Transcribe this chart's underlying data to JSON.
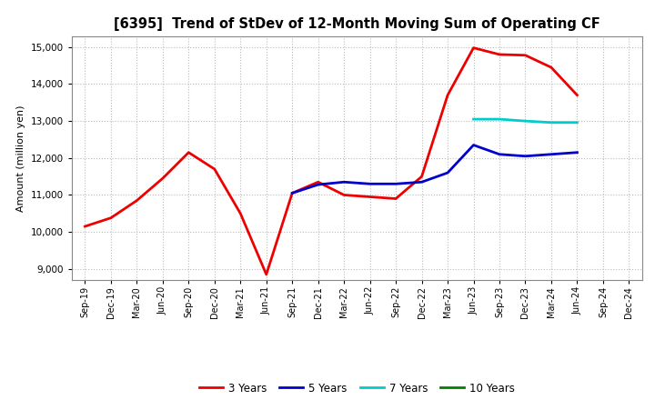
{
  "title": "[6395]  Trend of StDev of 12-Month Moving Sum of Operating CF",
  "ylabel": "Amount (million yen)",
  "ylim": [
    8700,
    15300
  ],
  "yticks": [
    9000,
    10000,
    11000,
    12000,
    13000,
    14000,
    15000
  ],
  "background_color": "#ffffff",
  "plot_bg_color": "#ffffff",
  "grid_color": "#bbbbbb",
  "x_labels": [
    "Sep-19",
    "Dec-19",
    "Mar-20",
    "Jun-20",
    "Sep-20",
    "Dec-20",
    "Mar-21",
    "Jun-21",
    "Sep-21",
    "Dec-21",
    "Mar-22",
    "Jun-22",
    "Sep-22",
    "Dec-22",
    "Mar-23",
    "Jun-23",
    "Sep-23",
    "Dec-23",
    "Mar-24",
    "Jun-24",
    "Sep-24",
    "Dec-24"
  ],
  "series": [
    {
      "name": "3 Years",
      "color": "#ee0000",
      "linewidth": 2.0,
      "data_x": [
        0,
        1,
        2,
        3,
        4,
        5,
        6,
        7,
        8,
        9,
        10,
        11,
        12,
        13,
        14,
        15,
        16,
        17,
        18,
        19
      ],
      "data_y": [
        10150,
        10380,
        10850,
        11450,
        12150,
        11700,
        10500,
        8850,
        11050,
        11350,
        11000,
        10950,
        10900,
        11500,
        13700,
        14980,
        14800,
        14780,
        14450,
        13700
      ]
    },
    {
      "name": "5 Years",
      "color": "#0000cc",
      "linewidth": 2.0,
      "data_x": [
        8,
        9,
        10,
        11,
        12,
        13,
        14,
        15,
        16,
        17,
        18,
        19
      ],
      "data_y": [
        11050,
        11280,
        11350,
        11300,
        11300,
        11350,
        11600,
        12350,
        12100,
        12050,
        12100,
        12150
      ]
    },
    {
      "name": "7 Years",
      "color": "#00cccc",
      "linewidth": 2.0,
      "data_x": [
        15,
        16,
        17,
        18,
        19
      ],
      "data_y": [
        13050,
        13050,
        13000,
        12960,
        12960
      ]
    },
    {
      "name": "10 Years",
      "color": "#008000",
      "linewidth": 2.0,
      "data_x": [],
      "data_y": []
    }
  ],
  "legend_colors": [
    "#ee0000",
    "#0000cc",
    "#00cccc",
    "#008000"
  ],
  "legend_labels": [
    "3 Years",
    "5 Years",
    "7 Years",
    "10 Years"
  ]
}
